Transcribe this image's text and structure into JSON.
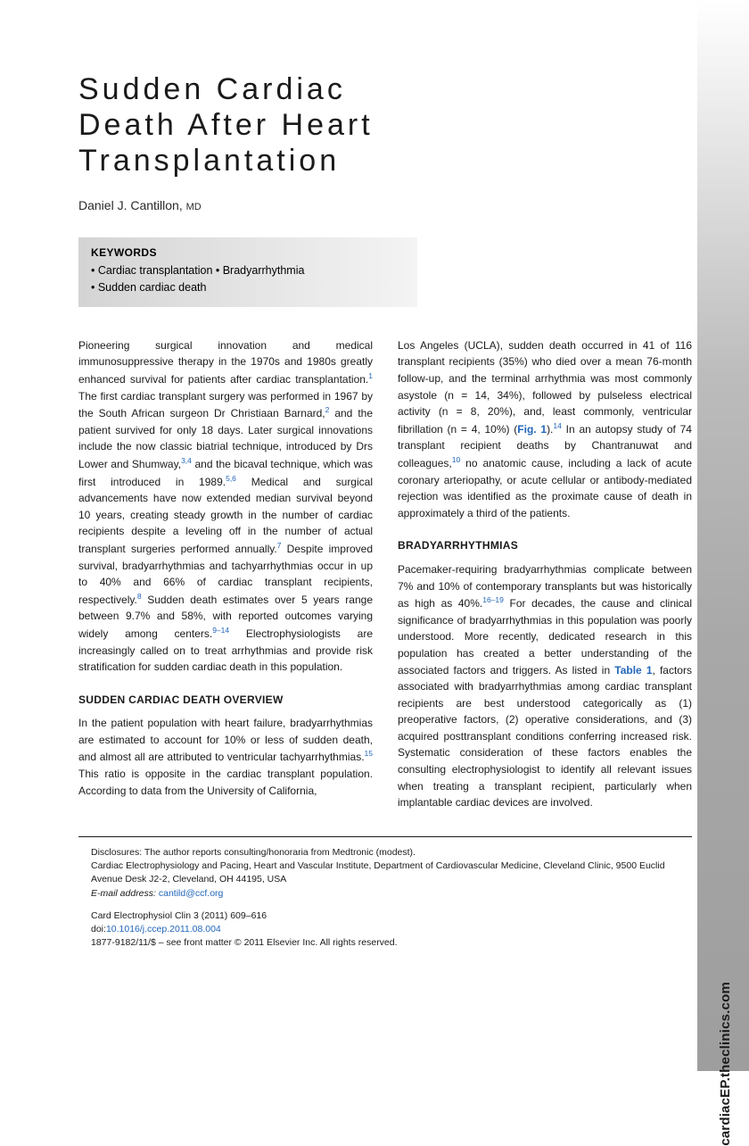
{
  "sidebar_url": "cardiacEP.theclinics.com",
  "title_lines": [
    "Sudden Cardiac",
    "Death After Heart",
    "Transplantation"
  ],
  "author": {
    "name": "Daniel J. Cantillon,",
    "cred": "MD"
  },
  "keywords": {
    "heading": "KEYWORDS",
    "lines": [
      "• Cardiac transplantation • Bradyarrhythmia",
      "• Sudden cardiac death"
    ]
  },
  "col1": {
    "para1": "Pioneering surgical innovation and medical immunosuppressive therapy in the 1970s and 1980s greatly enhanced survival for patients after cardiac transplantation.",
    "ref1": "1",
    "para1b": " The first cardiac transplant surgery was performed in 1967 by the South African surgeon Dr Christiaan Barnard,",
    "ref2": "2",
    "para1c": " and the patient survived for only 18 days. Later surgical innovations include the now classic biatrial technique, introduced by Drs Lower and Shumway,",
    "ref3": "3,4",
    "para1d": " and the bicaval technique, which was first introduced in 1989.",
    "ref4": "5,6",
    "para1e": " Medical and surgical advancements have now extended median survival beyond 10 years, creating steady growth in the number of cardiac recipients despite a leveling off in the number of actual transplant surgeries performed annually.",
    "ref5": "7",
    "para1f": " Despite improved survival, bradyarrhythmias and tachyarrhythmias occur in up to 40% and 66% of cardiac transplant recipients, respectively.",
    "ref6": "8",
    "para1g": " Sudden death estimates over 5 years range between 9.7% and 58%, with reported outcomes varying widely among centers.",
    "ref7": "9–14",
    "para1h": " Electrophysiologists are increasingly called on to treat arrhythmias and provide risk stratification for sudden cardiac death in this population.",
    "heading1": "SUDDEN CARDIAC DEATH OVERVIEW",
    "para2": "In the patient population with heart failure, bradyarrhythmias are estimated to account for 10% or less of sudden death, and almost all are attributed to ventricular tachyarrhythmias.",
    "ref8": "15",
    "para2b": " This ratio is opposite in the cardiac transplant population. According to data from the University of California,"
  },
  "col2": {
    "para1": "Los Angeles (UCLA), sudden death occurred in 41 of 116 transplant recipients (35%) who died over a mean 76-month follow-up, and the terminal arrhythmia was most commonly asystole (n = 14, 34%), followed by pulseless electrical activity (n = 8, 20%), and, least commonly, ventricular fibrillation (n = 4, 10%) (",
    "figref": "Fig. 1",
    "para1b": ").",
    "ref1": "14",
    "para1c": " In an autopsy study of 74 transplant recipient deaths by Chantranuwat and colleagues,",
    "ref2": "10",
    "para1d": " no anatomic cause, including a lack of acute coronary arteriopathy, or acute cellular or antibody-mediated rejection was identified as the proximate cause of death in approximately a third of the patients.",
    "heading1": "BRADYARRHYTHMIAS",
    "para2": "Pacemaker-requiring bradyarrhythmias complicate between 7% and 10% of contemporary transplants but was historically as high as 40%.",
    "ref3": "16–19",
    "para2b": " For decades, the cause and clinical significance of bradyarrhythmias in this population was poorly understood. More recently, dedicated research in this population has created a better understanding of the associated factors and triggers. As listed in ",
    "tblref": "Table 1",
    "para2c": ", factors associated with bradyarrhythmias among cardiac transplant recipients are best understood categorically as (1) preoperative factors, (2) operative considerations, and (3) acquired posttransplant conditions conferring increased risk. Systematic consideration of these factors enables the consulting electrophysiologist to identify all relevant issues when treating a transplant recipient, particularly when implantable cardiac devices are involved."
  },
  "footer": {
    "disclosures": "Disclosures: The author reports consulting/honoraria from Medtronic (modest).",
    "affil": "Cardiac Electrophysiology and Pacing, Heart and Vascular Institute, Department of Cardiovascular Medicine, Cleveland Clinic, 9500 Euclid Avenue Desk J2-2, Cleveland, OH 44195, USA",
    "email_label": "E-mail address:",
    "email": "cantild@ccf.org",
    "journal": "Card Electrophysiol Clin 3 (2011) 609–616",
    "doi_label": "doi:",
    "doi": "10.1016/j.ccep.2011.08.004",
    "copyright": "1877-9182/11/$ – see front matter © 2011 Elsevier Inc. All rights reserved."
  }
}
